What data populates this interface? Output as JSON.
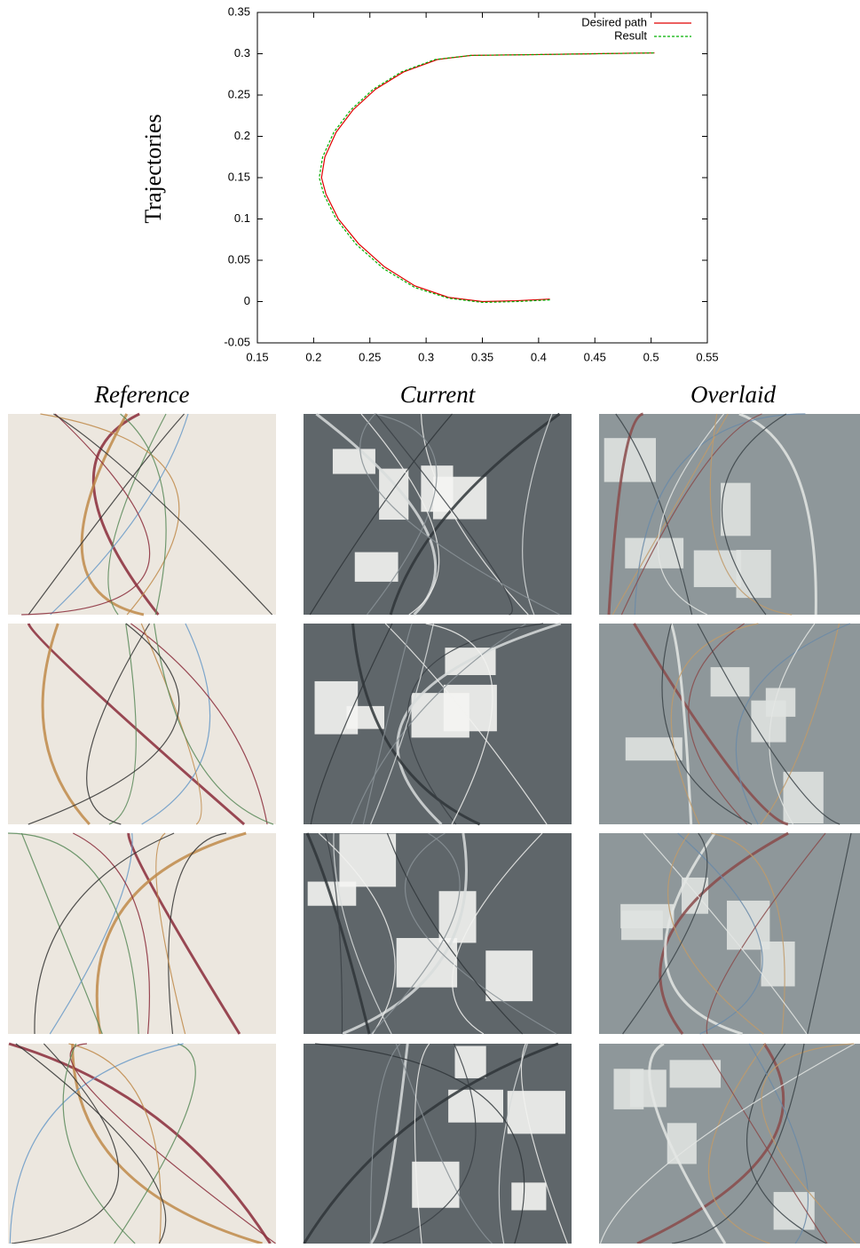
{
  "chart_data": {
    "type": "line",
    "y_label": "Trajectories",
    "xlim": [
      0.15,
      0.55
    ],
    "xticks": [
      0.15,
      0.2,
      0.25,
      0.3,
      0.35,
      0.4,
      0.45,
      0.5,
      0.55
    ],
    "ylim": [
      -0.05,
      0.35
    ],
    "yticks": [
      -0.05,
      0,
      0.05,
      0.1,
      0.15,
      0.2,
      0.25,
      0.3,
      0.35
    ],
    "legend": "top-right",
    "series": [
      {
        "name": "Desired path",
        "color": "#e00000",
        "dash": false,
        "x": [
          0.41,
          0.38,
          0.35,
          0.32,
          0.29,
          0.263,
          0.24,
          0.222,
          0.211,
          0.207,
          0.21,
          0.22,
          0.235,
          0.255,
          0.28,
          0.31,
          0.34,
          0.4,
          0.45,
          0.503
        ],
        "values": [
          0.003,
          0.001,
          0.0,
          0.005,
          0.019,
          0.042,
          0.07,
          0.1,
          0.13,
          0.15,
          0.175,
          0.205,
          0.232,
          0.257,
          0.278,
          0.293,
          0.298,
          0.299,
          0.3,
          0.301
        ]
      },
      {
        "name": "Result",
        "color": "#00b000",
        "dash": true,
        "x": [
          0.41,
          0.38,
          0.35,
          0.32,
          0.29,
          0.262,
          0.238,
          0.22,
          0.209,
          0.205,
          0.208,
          0.218,
          0.233,
          0.253,
          0.278,
          0.308,
          0.34,
          0.4,
          0.45,
          0.503
        ],
        "values": [
          0.002,
          0.0,
          -0.001,
          0.004,
          0.017,
          0.04,
          0.069,
          0.1,
          0.13,
          0.15,
          0.175,
          0.205,
          0.232,
          0.257,
          0.278,
          0.293,
          0.298,
          0.299,
          0.3,
          0.301
        ]
      }
    ]
  },
  "image_grid": {
    "columns": [
      "Reference",
      "Current",
      "Overlaid"
    ]
  }
}
